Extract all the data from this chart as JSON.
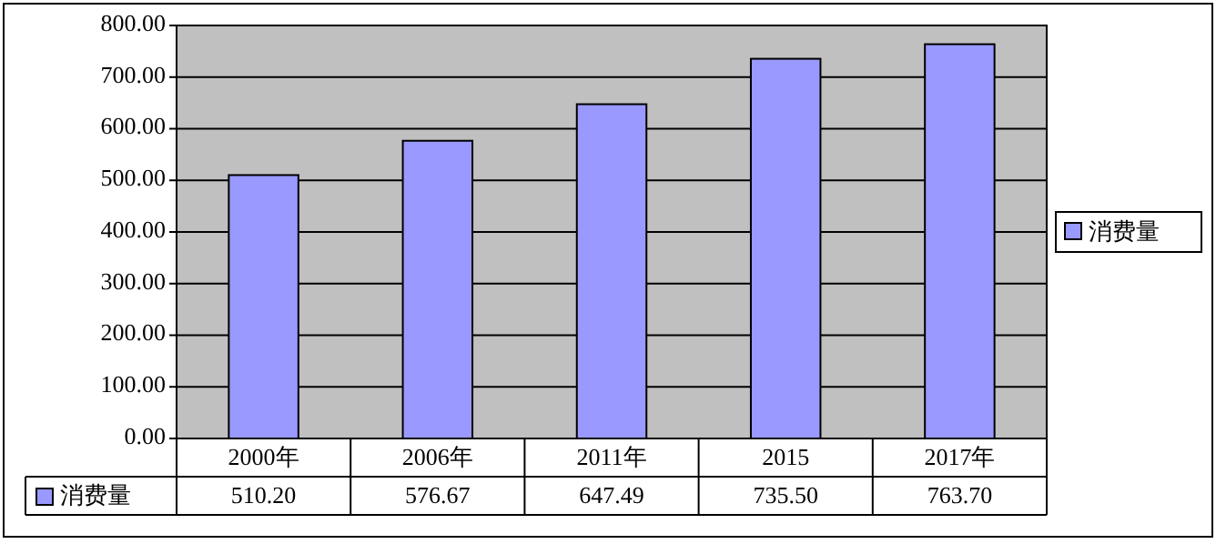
{
  "chart_data": {
    "type": "bar",
    "categories": [
      "2000年",
      "2006年",
      "2011年",
      "2015",
      "2017年"
    ],
    "series": [
      {
        "name": "消费量",
        "color": "#9999ff",
        "values": [
          510.2,
          576.67,
          647.49,
          735.5,
          763.7
        ],
        "value_labels": [
          "510.20",
          "576.67",
          "647.49",
          "735.50",
          "763.70"
        ]
      }
    ],
    "ylim": [
      0,
      800
    ],
    "yticks": [
      {
        "value": 0,
        "label": "0.00"
      },
      {
        "value": 100,
        "label": "100.00"
      },
      {
        "value": 200,
        "label": "200.00"
      },
      {
        "value": 300,
        "label": "300.00"
      },
      {
        "value": 400,
        "label": "400.00"
      },
      {
        "value": 500,
        "label": "500.00"
      },
      {
        "value": 600,
        "label": "600.00"
      },
      {
        "value": 700,
        "label": "700.00"
      },
      {
        "value": 800,
        "label": "800.00"
      }
    ],
    "grid": "y",
    "legend": "right"
  }
}
